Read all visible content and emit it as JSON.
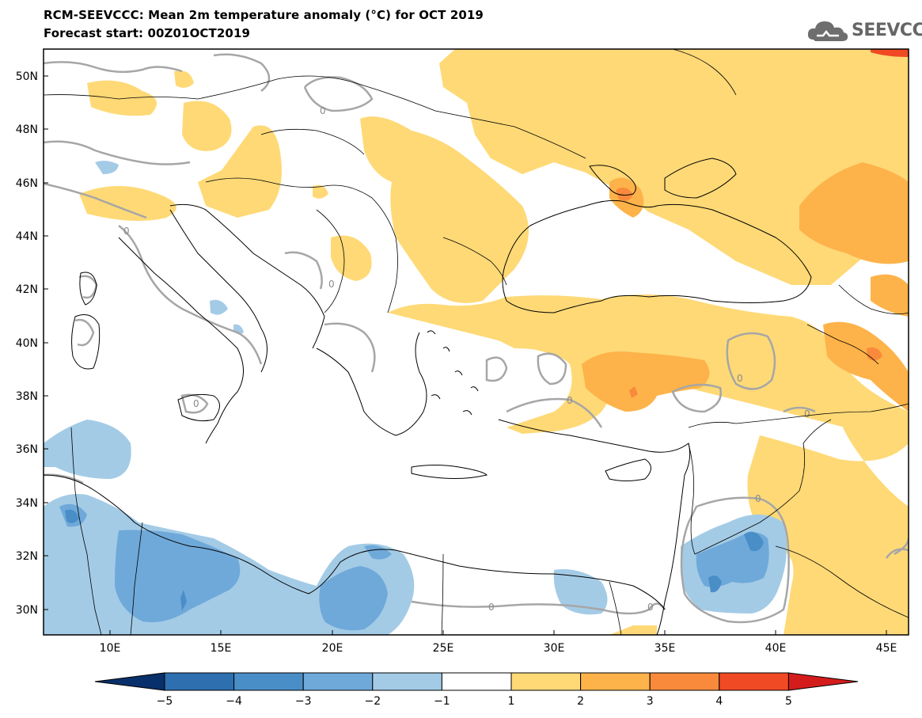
{
  "title": {
    "line1": "RCM-SEEVCCC: Mean 2m temperature anomaly (°C) for OCT 2019",
    "line2": "Forecast start: 00Z01OCT2019"
  },
  "logo": {
    "text": "SEEVCCC",
    "icon": "cloud-icon"
  },
  "map": {
    "lon_range": [
      7,
      46
    ],
    "lat_range": [
      29,
      51
    ],
    "lat_ticks": [
      "50N",
      "48N",
      "46N",
      "44N",
      "42N",
      "40N",
      "38N",
      "36N",
      "34N",
      "32N",
      "30N"
    ],
    "lon_ticks": [
      "10E",
      "15E",
      "20E",
      "25E",
      "30E",
      "35E",
      "40E",
      "45E"
    ],
    "contour_label": "0"
  },
  "colorbar": {
    "labels": [
      "−5",
      "−4",
      "−3",
      "−2",
      "−1",
      "1",
      "2",
      "3",
      "4",
      "5"
    ],
    "colors": [
      "#08306b",
      "#2e6fb0",
      "#4a8ec8",
      "#6fa9d9",
      "#a3cbe6",
      "#ffffff",
      "#fed976",
      "#fdb34a",
      "#f98a3c",
      "#f04a24",
      "#d41c1c"
    ]
  },
  "colors": {
    "warm1": "#fed976",
    "warm2": "#fdb34a",
    "warm3": "#f98a3c",
    "warm4": "#f04a24",
    "cool1": "#a3cbe6",
    "cool2": "#6fa9d9",
    "cool3": "#4a8ec8",
    "contour": "#a6a6a6"
  }
}
